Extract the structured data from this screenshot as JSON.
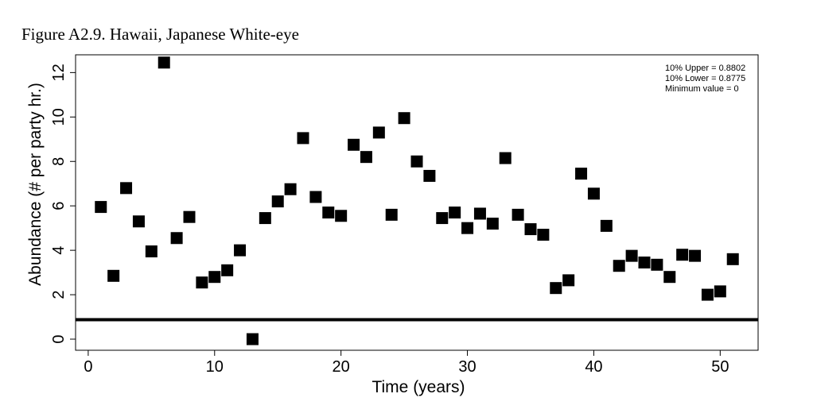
{
  "figure_title": "Figure A2.9. Hawaii, Japanese White-eye",
  "chart_data": {
    "type": "scatter",
    "xlabel": "Time (years)",
    "ylabel": "Abundance (# per party hr.)",
    "xlim": [
      -1,
      53
    ],
    "ylim": [
      -0.5,
      12.8
    ],
    "x_ticks": [
      0,
      10,
      20,
      30,
      40,
      50
    ],
    "y_ticks": [
      0,
      2,
      4,
      6,
      8,
      10,
      12
    ],
    "grid": false,
    "marker": "square",
    "marker_color": "#000000",
    "threshold_line": {
      "y": 0.8775,
      "color": "#000000"
    },
    "legend_position": "top-right",
    "legend_lines": [
      "10% Upper =  0.8802",
      "10% Lower =  0.8775",
      "Minimum value =  0"
    ],
    "x": [
      1,
      2,
      3,
      4,
      5,
      6,
      7,
      8,
      9,
      10,
      11,
      12,
      13,
      14,
      15,
      16,
      17,
      18,
      19,
      20,
      21,
      22,
      23,
      24,
      25,
      26,
      27,
      28,
      29,
      30,
      31,
      32,
      33,
      34,
      35,
      36,
      37,
      38,
      39,
      40,
      41,
      42,
      43,
      44,
      45,
      46,
      47,
      48,
      49,
      50,
      51
    ],
    "y": [
      5.95,
      2.85,
      6.8,
      5.3,
      3.95,
      12.45,
      4.55,
      5.5,
      2.55,
      2.8,
      3.1,
      4.0,
      0.0,
      5.45,
      6.2,
      6.75,
      9.05,
      6.4,
      5.7,
      5.55,
      8.75,
      8.2,
      9.3,
      5.6,
      9.95,
      8.0,
      7.35,
      5.45,
      5.7,
      5.0,
      5.65,
      5.2,
      8.15,
      5.6,
      4.95,
      4.7,
      2.3,
      2.65,
      7.45,
      6.55,
      5.1,
      3.3,
      3.75,
      3.45,
      3.35,
      2.8,
      3.8,
      3.75,
      2.0,
      2.15,
      3.6
    ]
  }
}
